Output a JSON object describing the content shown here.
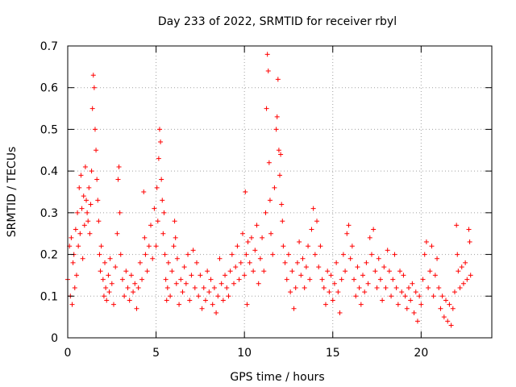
{
  "chart_data": {
    "type": "scatter",
    "title": "Day 233 of 2022, SRMTID for receiver rbyl",
    "xlabel": "GPS time / hours",
    "ylabel": "SRMTID / TECUs",
    "xlim": [
      0,
      24
    ],
    "ylim": [
      0,
      0.7
    ],
    "xticks": [
      0,
      5,
      10,
      15,
      20
    ],
    "xtick_labels": [
      "0",
      "5",
      "10",
      "15",
      "20"
    ],
    "yticks": [
      0,
      0.1,
      0.2,
      0.3,
      0.4,
      0.5,
      0.6,
      0.7
    ],
    "ytick_labels": [
      "0",
      "0.1",
      "0.2",
      "0.3",
      "0.4",
      "0.5",
      "0.6",
      "0.7"
    ],
    "grid": true,
    "marker": "+",
    "color": "#ff0000",
    "series": [
      {
        "name": "SRMTID",
        "points": [
          [
            0.0,
            0.14
          ],
          [
            0.1,
            0.22
          ],
          [
            0.15,
            0.1
          ],
          [
            0.2,
            0.24
          ],
          [
            0.25,
            0.08
          ],
          [
            0.3,
            0.18
          ],
          [
            0.35,
            0.2
          ],
          [
            0.4,
            0.12
          ],
          [
            0.45,
            0.26
          ],
          [
            0.5,
            0.15
          ],
          [
            0.55,
            0.3
          ],
          [
            0.6,
            0.22
          ],
          [
            0.65,
            0.36
          ],
          [
            0.7,
            0.25
          ],
          [
            0.75,
            0.39
          ],
          [
            0.8,
            0.31
          ],
          [
            0.85,
            0.19
          ],
          [
            0.9,
            0.34
          ],
          [
            0.95,
            0.27
          ],
          [
            1.0,
            0.41
          ],
          [
            1.05,
            0.33
          ],
          [
            1.1,
            0.3
          ],
          [
            1.15,
            0.28
          ],
          [
            1.2,
            0.36
          ],
          [
            1.25,
            0.25
          ],
          [
            1.3,
            0.32
          ],
          [
            1.35,
            0.4
          ],
          [
            1.4,
            0.55
          ],
          [
            1.45,
            0.63
          ],
          [
            1.5,
            0.6
          ],
          [
            1.55,
            0.5
          ],
          [
            1.6,
            0.45
          ],
          [
            1.65,
            0.38
          ],
          [
            1.7,
            0.33
          ],
          [
            1.75,
            0.28
          ],
          [
            1.8,
            0.2
          ],
          [
            1.85,
            0.16
          ],
          [
            1.9,
            0.22
          ],
          [
            2.0,
            0.14
          ],
          [
            2.05,
            0.1
          ],
          [
            2.1,
            0.18
          ],
          [
            2.15,
            0.12
          ],
          [
            2.2,
            0.09
          ],
          [
            2.3,
            0.15
          ],
          [
            2.35,
            0.11
          ],
          [
            2.4,
            0.19
          ],
          [
            2.5,
            0.13
          ],
          [
            2.6,
            0.08
          ],
          [
            2.7,
            0.17
          ],
          [
            2.8,
            0.25
          ],
          [
            2.85,
            0.38
          ],
          [
            2.9,
            0.41
          ],
          [
            2.95,
            0.3
          ],
          [
            3.0,
            0.2
          ],
          [
            3.1,
            0.14
          ],
          [
            3.2,
            0.1
          ],
          [
            3.3,
            0.16
          ],
          [
            3.4,
            0.12
          ],
          [
            3.5,
            0.09
          ],
          [
            3.6,
            0.15
          ],
          [
            3.7,
            0.11
          ],
          [
            3.8,
            0.13
          ],
          [
            3.9,
            0.07
          ],
          [
            4.0,
            0.12
          ],
          [
            4.1,
            0.18
          ],
          [
            4.2,
            0.14
          ],
          [
            4.3,
            0.35
          ],
          [
            4.35,
            0.24
          ],
          [
            4.4,
            0.2
          ],
          [
            4.5,
            0.16
          ],
          [
            4.6,
            0.22
          ],
          [
            4.7,
            0.27
          ],
          [
            4.8,
            0.19
          ],
          [
            4.9,
            0.31
          ],
          [
            5.0,
            0.22
          ],
          [
            5.05,
            0.36
          ],
          [
            5.1,
            0.28
          ],
          [
            5.15,
            0.43
          ],
          [
            5.2,
            0.5
          ],
          [
            5.25,
            0.47
          ],
          [
            5.3,
            0.38
          ],
          [
            5.35,
            0.33
          ],
          [
            5.4,
            0.25
          ],
          [
            5.45,
            0.3
          ],
          [
            5.5,
            0.2
          ],
          [
            5.55,
            0.14
          ],
          [
            5.6,
            0.09
          ],
          [
            5.65,
            0.12
          ],
          [
            5.7,
            0.18
          ],
          [
            5.8,
            0.1
          ],
          [
            5.9,
            0.16
          ],
          [
            6.0,
            0.22
          ],
          [
            6.05,
            0.28
          ],
          [
            6.1,
            0.24
          ],
          [
            6.15,
            0.13
          ],
          [
            6.2,
            0.19
          ],
          [
            6.3,
            0.08
          ],
          [
            6.4,
            0.14
          ],
          [
            6.5,
            0.11
          ],
          [
            6.6,
            0.17
          ],
          [
            6.7,
            0.13
          ],
          [
            6.8,
            0.2
          ],
          [
            6.9,
            0.09
          ],
          [
            7.0,
            0.15
          ],
          [
            7.1,
            0.21
          ],
          [
            7.2,
            0.12
          ],
          [
            7.3,
            0.18
          ],
          [
            7.4,
            0.1
          ],
          [
            7.5,
            0.15
          ],
          [
            7.6,
            0.07
          ],
          [
            7.7,
            0.12
          ],
          [
            7.8,
            0.09
          ],
          [
            7.9,
            0.16
          ],
          [
            8.0,
            0.11
          ],
          [
            8.1,
            0.14
          ],
          [
            8.2,
            0.08
          ],
          [
            8.3,
            0.12
          ],
          [
            8.4,
            0.06
          ],
          [
            8.5,
            0.1
          ],
          [
            8.6,
            0.19
          ],
          [
            8.7,
            0.13
          ],
          [
            8.8,
            0.09
          ],
          [
            8.9,
            0.15
          ],
          [
            9.0,
            0.12
          ],
          [
            9.1,
            0.1
          ],
          [
            9.2,
            0.16
          ],
          [
            9.3,
            0.2
          ],
          [
            9.4,
            0.13
          ],
          [
            9.5,
            0.17
          ],
          [
            9.6,
            0.22
          ],
          [
            9.7,
            0.14
          ],
          [
            9.8,
            0.18
          ],
          [
            9.9,
            0.25
          ],
          [
            10.0,
            0.15
          ],
          [
            10.05,
            0.35
          ],
          [
            10.1,
            0.2
          ],
          [
            10.15,
            0.08
          ],
          [
            10.2,
            0.23
          ],
          [
            10.3,
            0.18
          ],
          [
            10.4,
            0.24
          ],
          [
            10.5,
            0.16
          ],
          [
            10.6,
            0.21
          ],
          [
            10.7,
            0.27
          ],
          [
            10.8,
            0.13
          ],
          [
            10.9,
            0.19
          ],
          [
            11.0,
            0.24
          ],
          [
            11.1,
            0.16
          ],
          [
            11.2,
            0.3
          ],
          [
            11.25,
            0.55
          ],
          [
            11.3,
            0.68
          ],
          [
            11.35,
            0.64
          ],
          [
            11.4,
            0.42
          ],
          [
            11.45,
            0.33
          ],
          [
            11.5,
            0.25
          ],
          [
            11.6,
            0.2
          ],
          [
            11.7,
            0.36
          ],
          [
            11.8,
            0.5
          ],
          [
            11.85,
            0.53
          ],
          [
            11.9,
            0.62
          ],
          [
            11.95,
            0.45
          ],
          [
            12.0,
            0.39
          ],
          [
            12.05,
            0.44
          ],
          [
            12.1,
            0.32
          ],
          [
            12.15,
            0.28
          ],
          [
            12.2,
            0.22
          ],
          [
            12.3,
            0.18
          ],
          [
            12.4,
            0.14
          ],
          [
            12.5,
            0.2
          ],
          [
            12.6,
            0.11
          ],
          [
            12.7,
            0.16
          ],
          [
            12.8,
            0.07
          ],
          [
            12.9,
            0.12
          ],
          [
            13.0,
            0.18
          ],
          [
            13.1,
            0.23
          ],
          [
            13.2,
            0.15
          ],
          [
            13.3,
            0.19
          ],
          [
            13.4,
            0.12
          ],
          [
            13.5,
            0.17
          ],
          [
            13.6,
            0.22
          ],
          [
            13.7,
            0.14
          ],
          [
            13.8,
            0.26
          ],
          [
            13.9,
            0.31
          ],
          [
            14.0,
            0.2
          ],
          [
            14.1,
            0.28
          ],
          [
            14.2,
            0.17
          ],
          [
            14.3,
            0.22
          ],
          [
            14.4,
            0.14
          ],
          [
            14.5,
            0.12
          ],
          [
            14.6,
            0.08
          ],
          [
            14.7,
            0.16
          ],
          [
            14.8,
            0.11
          ],
          [
            14.9,
            0.15
          ],
          [
            15.0,
            0.09
          ],
          [
            15.1,
            0.13
          ],
          [
            15.2,
            0.18
          ],
          [
            15.3,
            0.11
          ],
          [
            15.4,
            0.06
          ],
          [
            15.5,
            0.14
          ],
          [
            15.6,
            0.2
          ],
          [
            15.7,
            0.16
          ],
          [
            15.8,
            0.25
          ],
          [
            15.9,
            0.27
          ],
          [
            16.0,
            0.19
          ],
          [
            16.1,
            0.22
          ],
          [
            16.2,
            0.14
          ],
          [
            16.3,
            0.1
          ],
          [
            16.4,
            0.17
          ],
          [
            16.5,
            0.12
          ],
          [
            16.6,
            0.08
          ],
          [
            16.7,
            0.15
          ],
          [
            16.8,
            0.11
          ],
          [
            16.9,
            0.18
          ],
          [
            17.0,
            0.13
          ],
          [
            17.1,
            0.24
          ],
          [
            17.2,
            0.2
          ],
          [
            17.3,
            0.26
          ],
          [
            17.4,
            0.16
          ],
          [
            17.5,
            0.12
          ],
          [
            17.6,
            0.19
          ],
          [
            17.7,
            0.14
          ],
          [
            17.8,
            0.09
          ],
          [
            17.9,
            0.17
          ],
          [
            18.0,
            0.12
          ],
          [
            18.1,
            0.21
          ],
          [
            18.2,
            0.16
          ],
          [
            18.3,
            0.1
          ],
          [
            18.4,
            0.14
          ],
          [
            18.5,
            0.2
          ],
          [
            18.6,
            0.12
          ],
          [
            18.7,
            0.08
          ],
          [
            18.8,
            0.16
          ],
          [
            18.9,
            0.11
          ],
          [
            19.0,
            0.15
          ],
          [
            19.1,
            0.1
          ],
          [
            19.2,
            0.07
          ],
          [
            19.3,
            0.12
          ],
          [
            19.4,
            0.09
          ],
          [
            19.5,
            0.13
          ],
          [
            19.6,
            0.06
          ],
          [
            19.7,
            0.11
          ],
          [
            19.8,
            0.04
          ],
          [
            19.9,
            0.1
          ],
          [
            20.0,
            0.08
          ],
          [
            20.1,
            0.14
          ],
          [
            20.2,
            0.2
          ],
          [
            20.3,
            0.23
          ],
          [
            20.4,
            0.12
          ],
          [
            20.5,
            0.16
          ],
          [
            20.6,
            0.22
          ],
          [
            20.7,
            0.1
          ],
          [
            20.8,
            0.15
          ],
          [
            20.9,
            0.19
          ],
          [
            21.0,
            0.12
          ],
          [
            21.1,
            0.07
          ],
          [
            21.2,
            0.1
          ],
          [
            21.3,
            0.05
          ],
          [
            21.4,
            0.09
          ],
          [
            21.5,
            0.04
          ],
          [
            21.6,
            0.08
          ],
          [
            21.7,
            0.03
          ],
          [
            21.8,
            0.07
          ],
          [
            21.9,
            0.11
          ],
          [
            22.0,
            0.27
          ],
          [
            22.05,
            0.2
          ],
          [
            22.1,
            0.16
          ],
          [
            22.2,
            0.12
          ],
          [
            22.3,
            0.17
          ],
          [
            22.4,
            0.13
          ],
          [
            22.5,
            0.18
          ],
          [
            22.6,
            0.14
          ],
          [
            22.7,
            0.26
          ],
          [
            22.75,
            0.23
          ],
          [
            22.8,
            0.15
          ]
        ]
      }
    ]
  }
}
